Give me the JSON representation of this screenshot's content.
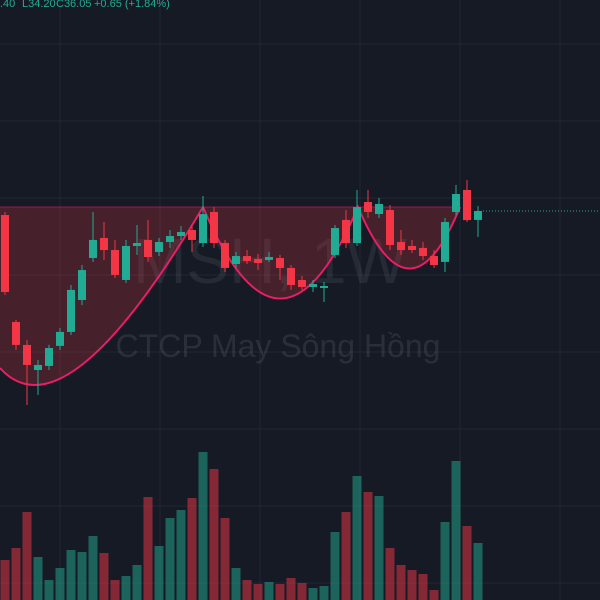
{
  "chart_data": {
    "type": "candlestick",
    "header": [
      ".40",
      "L34.20",
      "C36.05",
      "+0.65 (+1.84%)"
    ],
    "watermark": "MSH, 1W",
    "subtitle": "CTCP May Sông Hồng",
    "up_color": "#22ab94",
    "down_color": "#f23645",
    "ylim": [
      8.26,
      51.12
    ],
    "vlim": [
      0,
      150
    ],
    "open": [
      35.76,
      28.12,
      26.48,
      24.69,
      24.98,
      26.41,
      27.41,
      29.69,
      32.69,
      34.12,
      33.26,
      31.12,
      33.55,
      33.98,
      33.12,
      33.83,
      34.26,
      34.69,
      33.76,
      35.98,
      33.76,
      32.26,
      32.83,
      32.62,
      32.55,
      32.69,
      31.98,
      31.12,
      30.62,
      30.55,
      32.91,
      35.41,
      33.76,
      36.69,
      35.83,
      36.12,
      33.83,
      33.55,
      33.41,
      32.83,
      32.41,
      35.98,
      37.55,
      35.41
    ],
    "high": [
      35.98,
      28.26,
      26.83,
      25.41,
      26.48,
      27.69,
      30.76,
      32.19,
      35.98,
      35.26,
      33.98,
      33.98,
      35.05,
      35.41,
      34.12,
      34.69,
      34.98,
      35.05,
      37.12,
      36.33,
      33.98,
      33.12,
      33.26,
      32.98,
      33.12,
      32.91,
      32.19,
      31.41,
      31.12,
      30.98,
      35.05,
      36.12,
      37.55,
      37.55,
      36.98,
      36.48,
      34.69,
      33.98,
      33.83,
      33.26,
      35.55,
      37.91,
      38.26,
      36.4
    ],
    "low": [
      30.05,
      26.12,
      22.19,
      22.91,
      24.69,
      26.12,
      27.19,
      29.33,
      32.41,
      32.55,
      31.26,
      30.91,
      32.91,
      32.41,
      32.83,
      33.41,
      33.98,
      33.12,
      33.48,
      33.41,
      31.69,
      31.98,
      32.26,
      31.83,
      32.41,
      31.12,
      30.41,
      30.41,
      30.26,
      29.55,
      32.69,
      33.41,
      33.55,
      35.55,
      35.55,
      33.26,
      32.91,
      33.05,
      32.55,
      31.98,
      31.69,
      35.76,
      35.26,
      34.2
    ],
    "close": [
      30.26,
      26.48,
      25.05,
      25.05,
      26.26,
      27.41,
      30.41,
      31.83,
      33.98,
      33.26,
      31.48,
      33.55,
      33.76,
      32.76,
      33.83,
      34.26,
      34.55,
      33.98,
      35.83,
      33.76,
      31.98,
      32.83,
      32.48,
      32.33,
      32.76,
      31.98,
      30.76,
      30.62,
      30.83,
      30.69,
      34.83,
      33.76,
      36.33,
      35.98,
      36.55,
      33.62,
      33.26,
      33.26,
      32.83,
      32.19,
      35.26,
      37.26,
      35.4,
      36.05
    ],
    "volume": [
      40,
      52,
      88,
      43,
      20,
      32,
      50,
      48,
      64,
      47,
      20,
      24,
      35,
      103,
      54,
      82,
      90,
      102,
      148,
      131,
      82,
      32,
      20,
      16,
      18,
      16,
      22,
      17,
      12,
      14,
      68,
      88,
      124,
      108,
      104,
      52,
      35,
      30,
      26,
      10,
      78,
      139,
      74,
      57
    ]
  }
}
